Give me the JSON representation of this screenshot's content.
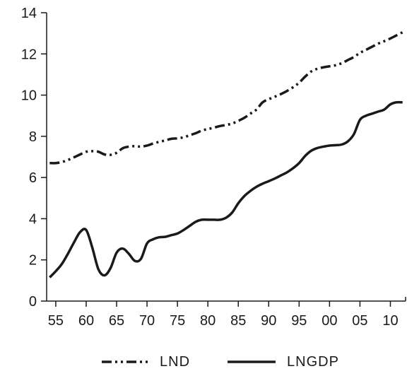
{
  "chart_data": {
    "type": "line",
    "xlabel": "",
    "ylabel": "",
    "xlim": [
      1953.5,
      2012.5
    ],
    "ylim": [
      0,
      14
    ],
    "x_ticks": [
      1955,
      1960,
      1965,
      1970,
      1975,
      1980,
      1985,
      1990,
      1995,
      2000,
      2005,
      2010
    ],
    "x_tick_labels": [
      "55",
      "60",
      "65",
      "70",
      "75",
      "80",
      "85",
      "90",
      "95",
      "00",
      "05",
      "10"
    ],
    "y_ticks": [
      0,
      2,
      4,
      6,
      8,
      10,
      12,
      14
    ],
    "y_tick_labels": [
      "0",
      "2",
      "4",
      "6",
      "8",
      "10",
      "12",
      "14"
    ],
    "grid": false,
    "legend_position": "bottom",
    "series": [
      {
        "name": "LND",
        "style": "dash-dot-dot",
        "color": "#1a1a1a",
        "x": [
          1954,
          1955,
          1956,
          1957,
          1958,
          1959,
          1960,
          1961,
          1962,
          1963,
          1964,
          1965,
          1966,
          1967,
          1968,
          1969,
          1970,
          1971,
          1972,
          1973,
          1974,
          1975,
          1976,
          1977,
          1978,
          1979,
          1980,
          1981,
          1982,
          1983,
          1984,
          1985,
          1986,
          1987,
          1988,
          1989,
          1990,
          1991,
          1992,
          1993,
          1994,
          1995,
          1996,
          1997,
          1998,
          1999,
          2000,
          2001,
          2002,
          2003,
          2004,
          2005,
          2006,
          2007,
          2008,
          2009,
          2010,
          2011,
          2012
        ],
        "values": [
          6.7,
          6.7,
          6.75,
          6.85,
          6.98,
          7.12,
          7.25,
          7.28,
          7.25,
          7.12,
          7.1,
          7.2,
          7.42,
          7.5,
          7.52,
          7.5,
          7.55,
          7.65,
          7.73,
          7.8,
          7.88,
          7.9,
          7.95,
          8.05,
          8.15,
          8.28,
          8.35,
          8.42,
          8.5,
          8.55,
          8.62,
          8.75,
          8.9,
          9.1,
          9.3,
          9.65,
          9.8,
          9.92,
          10.05,
          10.2,
          10.38,
          10.6,
          10.9,
          11.15,
          11.28,
          11.35,
          11.4,
          11.45,
          11.55,
          11.7,
          11.85,
          12.05,
          12.2,
          12.35,
          12.5,
          12.62,
          12.75,
          12.9,
          13.05
        ]
      },
      {
        "name": "LNGDP",
        "style": "solid",
        "color": "#1a1a1a",
        "x": [
          1954,
          1955,
          1956,
          1957,
          1958,
          1959,
          1960,
          1961,
          1962,
          1963,
          1964,
          1965,
          1966,
          1967,
          1968,
          1969,
          1970,
          1971,
          1972,
          1973,
          1974,
          1975,
          1976,
          1977,
          1978,
          1979,
          1980,
          1981,
          1982,
          1983,
          1984,
          1985,
          1986,
          1987,
          1988,
          1989,
          1990,
          1991,
          1992,
          1993,
          1994,
          1995,
          1996,
          1997,
          1998,
          1999,
          2000,
          2001,
          2002,
          2003,
          2004,
          2005,
          2006,
          2007,
          2008,
          2009,
          2010,
          2011,
          2012
        ],
        "values": [
          1.15,
          1.45,
          1.8,
          2.3,
          2.85,
          3.35,
          3.45,
          2.6,
          1.55,
          1.25,
          1.6,
          2.35,
          2.55,
          2.3,
          1.95,
          2.05,
          2.8,
          3.0,
          3.1,
          3.12,
          3.2,
          3.28,
          3.45,
          3.65,
          3.85,
          3.95,
          3.95,
          3.95,
          3.95,
          4.05,
          4.3,
          4.75,
          5.1,
          5.35,
          5.55,
          5.7,
          5.82,
          5.95,
          6.1,
          6.25,
          6.45,
          6.7,
          7.05,
          7.3,
          7.43,
          7.5,
          7.55,
          7.57,
          7.6,
          7.75,
          8.1,
          8.8,
          9.0,
          9.1,
          9.2,
          9.3,
          9.55,
          9.65,
          9.65
        ]
      }
    ]
  }
}
